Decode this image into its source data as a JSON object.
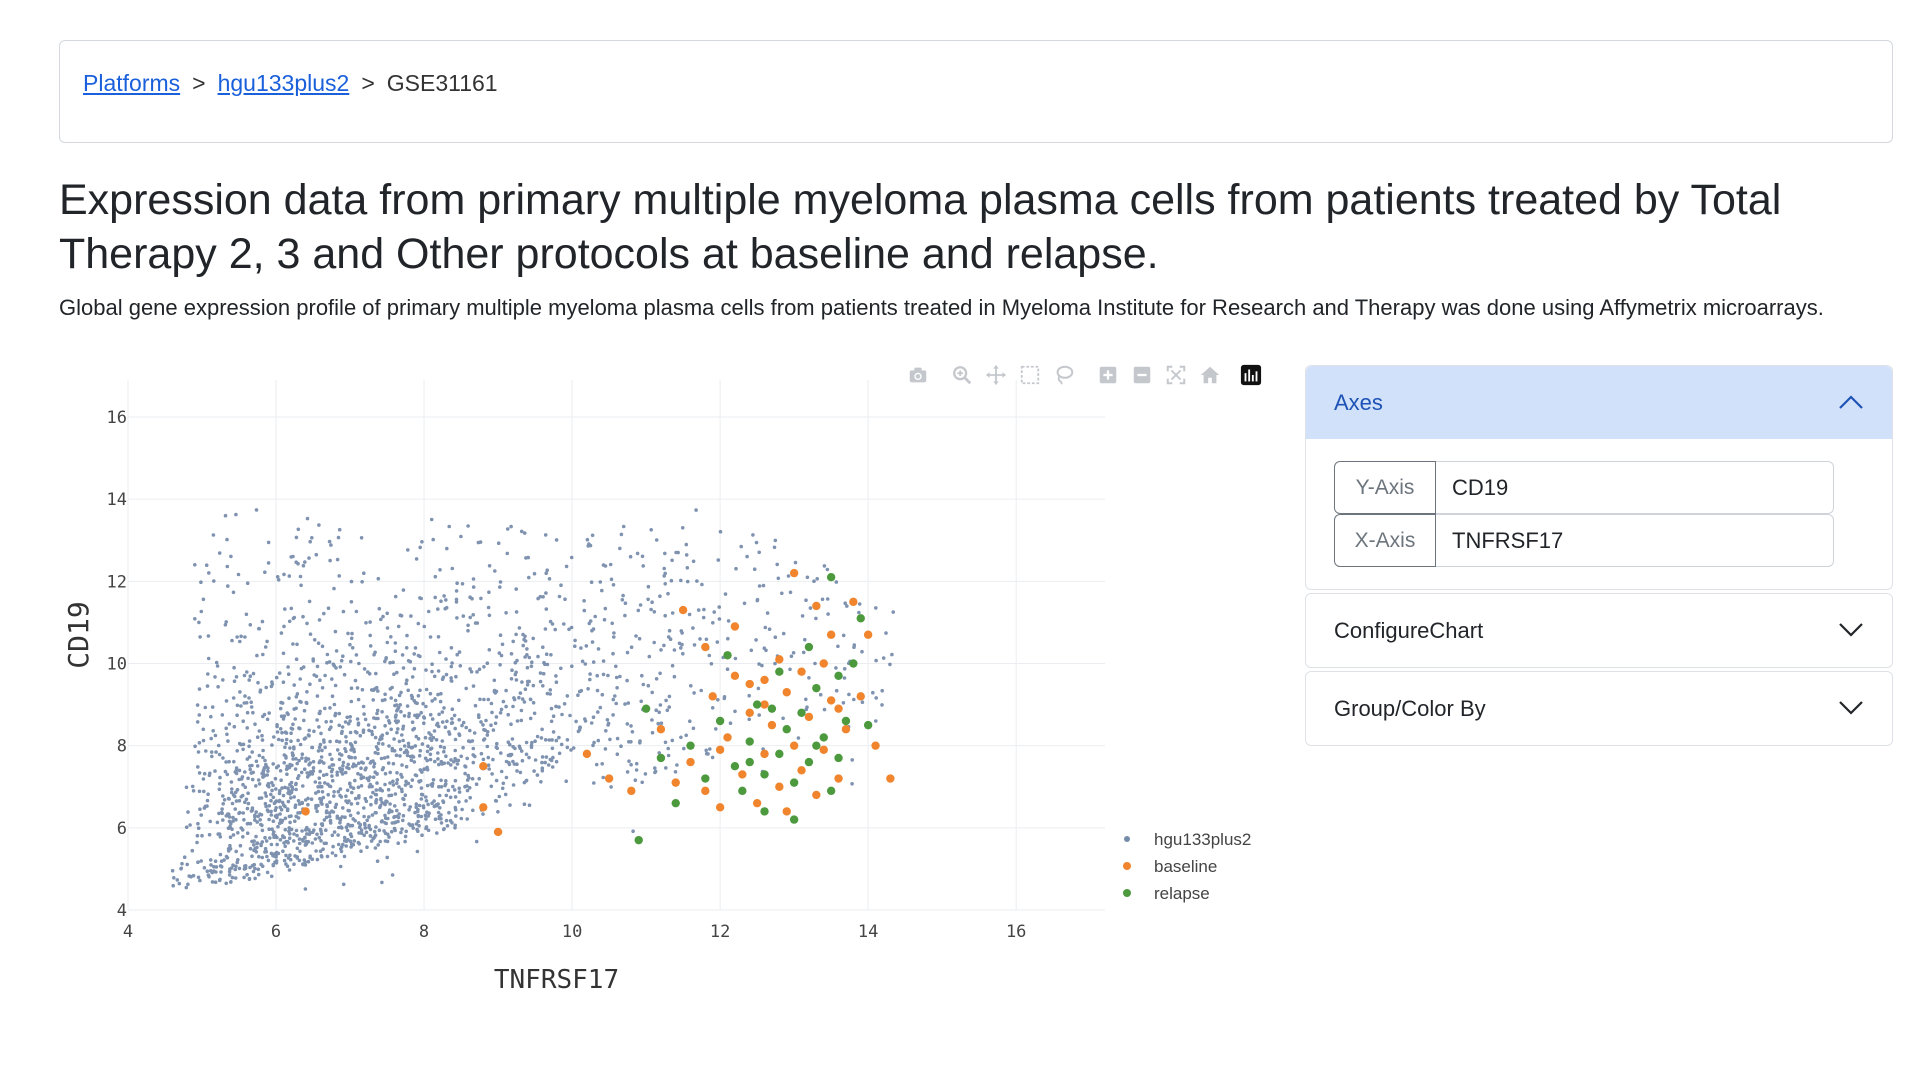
{
  "breadcrumb": {
    "items": [
      {
        "label": "Platforms",
        "link": true
      },
      {
        "label": "hgu133plus2",
        "link": true
      },
      {
        "label": "GSE31161",
        "link": false
      }
    ],
    "separator": ">"
  },
  "header": {
    "title": "Expression data from primary multiple myeloma plasma cells from patients treated by Total Therapy 2, 3 and Other protocols at baseline and relapse.",
    "subtitle": "Global gene expression profile of primary multiple myeloma plasma cells from patients treated in Myeloma Institute for Research and Therapy was done using Affymetrix microarrays."
  },
  "modebar": {
    "icons": [
      "camera-icon",
      "zoom-icon",
      "pan-icon",
      "box-select-icon",
      "lasso-select-icon",
      "zoom-in-icon",
      "zoom-out-icon",
      "autoscale-icon",
      "reset-axes-icon",
      "plotly-logo-icon"
    ]
  },
  "accordion": {
    "axes": {
      "title": "Axes",
      "y_label": "Y-Axis",
      "y_value": "CD19",
      "x_label": "X-Axis",
      "x_value": "TNFRSF17"
    },
    "configure": {
      "title": "ConfigureChart"
    },
    "group": {
      "title": "Group/Color By"
    }
  },
  "chart_data": {
    "type": "scatter",
    "xlabel": "TNFRSF17",
    "ylabel": "CD19",
    "xlim": [
      4,
      17.2
    ],
    "ylim": [
      4,
      16.9
    ],
    "xticks": [
      4,
      6,
      8,
      10,
      12,
      14,
      16
    ],
    "yticks": [
      4,
      6,
      8,
      10,
      12,
      14,
      16
    ],
    "grid": true,
    "legend_position": "right",
    "series": [
      {
        "name": "hgu133plus2",
        "color": "#3b5a86",
        "cloud": {
          "x_range": [
            4.5,
            15
          ],
          "y_range": [
            4.5,
            14.2
          ],
          "density_center": [
            7.5,
            7.5
          ]
        }
      },
      {
        "name": "baseline",
        "color": "#f0852d",
        "points": [
          [
            6.4,
            6.4
          ],
          [
            8.8,
            7.5
          ],
          [
            8.8,
            6.5
          ],
          [
            9.0,
            5.9
          ],
          [
            10.2,
            7.8
          ],
          [
            11.5,
            11.3
          ],
          [
            11.8,
            10.4
          ],
          [
            12.2,
            10.9
          ],
          [
            12.4,
            9.5
          ],
          [
            12.6,
            9.0
          ],
          [
            13.0,
            12.2
          ],
          [
            13.3,
            11.4
          ],
          [
            13.5,
            10.7
          ],
          [
            13.8,
            11.5
          ],
          [
            14.0,
            10.7
          ],
          [
            13.9,
            9.2
          ],
          [
            14.1,
            8.0
          ],
          [
            14.3,
            7.2
          ],
          [
            11.2,
            8.4
          ],
          [
            11.6,
            7.6
          ],
          [
            11.8,
            6.9
          ],
          [
            12.0,
            6.5
          ],
          [
            12.1,
            8.2
          ],
          [
            12.3,
            7.3
          ],
          [
            12.4,
            8.8
          ],
          [
            12.5,
            6.6
          ],
          [
            12.6,
            7.8
          ],
          [
            12.7,
            8.5
          ],
          [
            12.8,
            7.0
          ],
          [
            12.9,
            9.3
          ],
          [
            13.0,
            8.0
          ],
          [
            13.1,
            7.4
          ],
          [
            13.2,
            8.7
          ],
          [
            13.3,
            6.8
          ],
          [
            13.4,
            7.9
          ],
          [
            13.5,
            9.1
          ],
          [
            13.6,
            7.2
          ],
          [
            13.7,
            8.4
          ],
          [
            12.2,
            9.7
          ],
          [
            12.8,
            10.1
          ],
          [
            13.4,
            10.0
          ],
          [
            11.4,
            7.1
          ],
          [
            10.8,
            6.9
          ],
          [
            10.5,
            7.2
          ],
          [
            11.9,
            9.2
          ],
          [
            12.6,
            9.6
          ],
          [
            13.1,
            9.8
          ],
          [
            12.0,
            7.9
          ],
          [
            12.9,
            6.4
          ],
          [
            13.6,
            8.9
          ]
        ]
      },
      {
        "name": "relapse",
        "color": "#4c9a3d",
        "points": [
          [
            10.9,
            5.7
          ],
          [
            11.0,
            8.9
          ],
          [
            11.2,
            7.7
          ],
          [
            11.6,
            8.0
          ],
          [
            11.8,
            7.2
          ],
          [
            12.0,
            8.6
          ],
          [
            12.2,
            7.5
          ],
          [
            12.3,
            6.9
          ],
          [
            12.4,
            8.1
          ],
          [
            12.5,
            9.0
          ],
          [
            12.6,
            7.3
          ],
          [
            12.7,
            8.9
          ],
          [
            12.8,
            7.8
          ],
          [
            12.9,
            8.4
          ],
          [
            13.0,
            7.1
          ],
          [
            13.1,
            8.8
          ],
          [
            13.2,
            7.6
          ],
          [
            13.3,
            9.4
          ],
          [
            13.4,
            8.2
          ],
          [
            13.5,
            6.9
          ],
          [
            13.6,
            9.7
          ],
          [
            13.7,
            8.6
          ],
          [
            13.8,
            10.0
          ],
          [
            13.9,
            11.1
          ],
          [
            13.5,
            12.1
          ],
          [
            13.2,
            10.4
          ],
          [
            12.1,
            10.2
          ],
          [
            12.6,
            6.4
          ],
          [
            13.0,
            6.2
          ],
          [
            11.4,
            6.6
          ],
          [
            12.8,
            9.8
          ],
          [
            13.3,
            8.0
          ],
          [
            12.4,
            7.6
          ],
          [
            13.6,
            7.7
          ],
          [
            14.0,
            8.5
          ]
        ]
      }
    ]
  }
}
